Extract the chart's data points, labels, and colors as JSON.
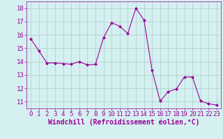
{
  "x": [
    0,
    1,
    2,
    3,
    4,
    5,
    6,
    7,
    8,
    9,
    10,
    11,
    12,
    13,
    14,
    15,
    16,
    17,
    18,
    19,
    20,
    21,
    22,
    23
  ],
  "y": [
    15.7,
    14.8,
    13.9,
    13.9,
    13.85,
    13.8,
    14.0,
    13.75,
    13.8,
    15.8,
    16.9,
    16.65,
    16.1,
    18.0,
    17.1,
    13.35,
    11.05,
    11.75,
    11.95,
    12.85,
    12.85,
    11.05,
    10.85,
    10.75
  ],
  "line_color": "#990099",
  "marker": "D",
  "marker_size": 2,
  "xlabel": "Windchill (Refroidissement éolien,°C)",
  "xlabel_fontsize": 7,
  "bg_color": "#d5f0f0",
  "grid_color": "#aacccc",
  "ylim": [
    10.5,
    18.5
  ],
  "xlim": [
    -0.5,
    23.5
  ],
  "yticks": [
    11,
    12,
    13,
    14,
    15,
    16,
    17,
    18
  ],
  "xticks": [
    0,
    1,
    2,
    3,
    4,
    5,
    6,
    7,
    8,
    9,
    10,
    11,
    12,
    13,
    14,
    15,
    16,
    17,
    18,
    19,
    20,
    21,
    22,
    23
  ],
  "tick_fontsize": 6.5
}
